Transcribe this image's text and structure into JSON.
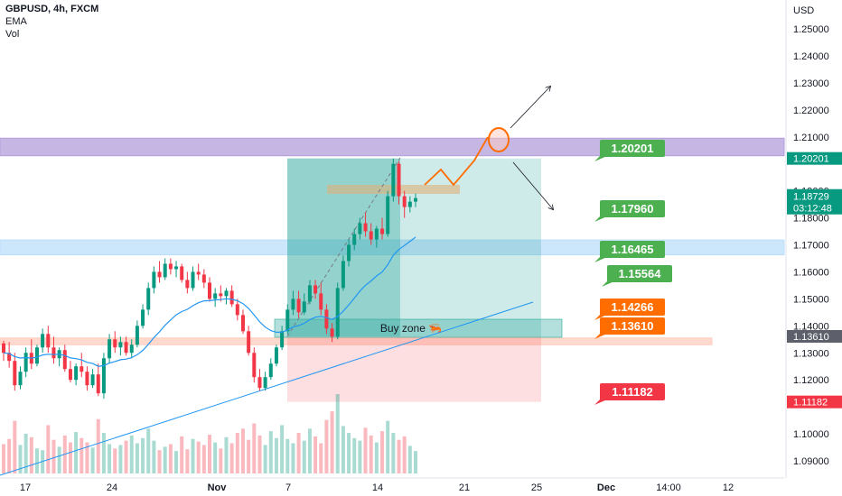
{
  "header": {
    "symbol": "GBPUSD, 4h, FXCM",
    "indicator_1": "EMA",
    "indicator_2": "Vol"
  },
  "chart_data": {
    "type": "candlestick",
    "currency": "USD",
    "ylim": [
      1.085,
      1.265
    ],
    "y_ticks": [
      "1.25000",
      "1.24000",
      "1.23000",
      "1.22000",
      "1.21000",
      "1.19000",
      "1.18000",
      "1.17000",
      "1.16000",
      "1.15000",
      "1.14000",
      "1.13000",
      "1.12000",
      "1.10000",
      "1.09000"
    ],
    "x_ticks": [
      "17",
      "24",
      "Nov",
      "7",
      "14",
      "21",
      "25",
      "Dec",
      "14:00",
      "12"
    ],
    "last_price": {
      "value": "1.18729",
      "countdown": "03:12:48",
      "color": "#089981"
    },
    "axis_price_tags": [
      {
        "value": "1.20201",
        "color": "#089981"
      },
      {
        "value": "1.13610",
        "color": "#5d606b"
      },
      {
        "value": "1.11182",
        "color": "#f23645"
      }
    ],
    "callouts": [
      {
        "label": "1.20201",
        "color": "#4caf50"
      },
      {
        "label": "1.17960",
        "color": "#4caf50"
      },
      {
        "label": "1.16465",
        "color": "#4caf50"
      },
      {
        "label": "1.15564",
        "color": "#4caf50"
      },
      {
        "label": "1.14266",
        "color": "#ff6d00"
      },
      {
        "label": "1.13610",
        "color": "#ff6d00"
      },
      {
        "label": "1.11182",
        "color": "#f23645"
      }
    ],
    "zones": [
      {
        "name": "resistance",
        "from": 1.203,
        "to": 1.2095,
        "color": "#b39ddb"
      },
      {
        "name": "support",
        "from": 1.1663,
        "to": 1.1718,
        "color": "#bbdefb"
      },
      {
        "name": "demand",
        "from": 1.133,
        "to": 1.1355,
        "color": "#ffccbc"
      }
    ],
    "buy_zone_label": "Buy zone 🦐",
    "position": {
      "entry": 1.1361,
      "target": 1.20201,
      "stop": 1.11182
    },
    "ema_color": "#2196f3",
    "up_color": "#089981",
    "down_color": "#f23645",
    "candles": [
      [
        1.1335,
        1.1345,
        1.127,
        1.13
      ],
      [
        1.13,
        1.134,
        1.1245,
        1.127
      ],
      [
        1.127,
        1.13,
        1.116,
        1.118
      ],
      [
        1.118,
        1.125,
        1.1165,
        1.123
      ],
      [
        1.123,
        1.132,
        1.121,
        1.13
      ],
      [
        1.13,
        1.135,
        1.124,
        1.126
      ],
      [
        1.126,
        1.133,
        1.125,
        1.132
      ],
      [
        1.132,
        1.139,
        1.13,
        1.137
      ],
      [
        1.137,
        1.14,
        1.13,
        1.132
      ],
      [
        1.132,
        1.136,
        1.126,
        1.128
      ],
      [
        1.128,
        1.132,
        1.125,
        1.131
      ],
      [
        1.131,
        1.133,
        1.123,
        1.124
      ],
      [
        1.124,
        1.127,
        1.119,
        1.12
      ],
      [
        1.12,
        1.126,
        1.118,
        1.125
      ],
      [
        1.125,
        1.13,
        1.121,
        1.123
      ],
      [
        1.123,
        1.125,
        1.116,
        1.118
      ],
      [
        1.118,
        1.124,
        1.117,
        1.122
      ],
      [
        1.122,
        1.126,
        1.114,
        1.115
      ],
      [
        1.115,
        1.13,
        1.113,
        1.128
      ],
      [
        1.128,
        1.137,
        1.126,
        1.135
      ],
      [
        1.135,
        1.138,
        1.13,
        1.132
      ],
      [
        1.132,
        1.136,
        1.129,
        1.134
      ],
      [
        1.134,
        1.136,
        1.129,
        1.13
      ],
      [
        1.13,
        1.135,
        1.128,
        1.133
      ],
      [
        1.133,
        1.142,
        1.132,
        1.14
      ],
      [
        1.14,
        1.148,
        1.139,
        1.146
      ],
      [
        1.146,
        1.156,
        1.144,
        1.154
      ],
      [
        1.154,
        1.162,
        1.152,
        1.16
      ],
      [
        1.16,
        1.164,
        1.156,
        1.158
      ],
      [
        1.158,
        1.165,
        1.157,
        1.163
      ],
      [
        1.163,
        1.165,
        1.159,
        1.161
      ],
      [
        1.161,
        1.164,
        1.158,
        1.162
      ],
      [
        1.162,
        1.163,
        1.156,
        1.157
      ],
      [
        1.157,
        1.16,
        1.152,
        1.154
      ],
      [
        1.154,
        1.162,
        1.153,
        1.16
      ],
      [
        1.16,
        1.163,
        1.157,
        1.159
      ],
      [
        1.159,
        1.161,
        1.154,
        1.156
      ],
      [
        1.156,
        1.158,
        1.149,
        1.15
      ],
      [
        1.15,
        1.154,
        1.147,
        1.152
      ],
      [
        1.152,
        1.155,
        1.149,
        1.151
      ],
      [
        1.151,
        1.154,
        1.148,
        1.153
      ],
      [
        1.153,
        1.155,
        1.147,
        1.148
      ],
      [
        1.148,
        1.15,
        1.142,
        1.144
      ],
      [
        1.144,
        1.146,
        1.137,
        1.138
      ],
      [
        1.138,
        1.14,
        1.129,
        1.13
      ],
      [
        1.13,
        1.132,
        1.119,
        1.121
      ],
      [
        1.121,
        1.124,
        1.116,
        1.117
      ],
      [
        1.117,
        1.123,
        1.116,
        1.121
      ],
      [
        1.121,
        1.128,
        1.12,
        1.126
      ],
      [
        1.126,
        1.133,
        1.125,
        1.132
      ],
      [
        1.132,
        1.14,
        1.131,
        1.138
      ],
      [
        1.138,
        1.148,
        1.137,
        1.146
      ],
      [
        1.146,
        1.153,
        1.144,
        1.15
      ],
      [
        1.15,
        1.153,
        1.143,
        1.145
      ],
      [
        1.145,
        1.152,
        1.144,
        1.149
      ],
      [
        1.149,
        1.157,
        1.148,
        1.155
      ],
      [
        1.155,
        1.157,
        1.15,
        1.152
      ],
      [
        1.152,
        1.156,
        1.144,
        1.146
      ],
      [
        1.146,
        1.148,
        1.137,
        1.139
      ],
      [
        1.139,
        1.141,
        1.134,
        1.136
      ],
      [
        1.136,
        1.156,
        1.135,
        1.154
      ],
      [
        1.154,
        1.166,
        1.153,
        1.164
      ],
      [
        1.164,
        1.172,
        1.162,
        1.17
      ],
      [
        1.17,
        1.176,
        1.168,
        1.174
      ],
      [
        1.174,
        1.18,
        1.172,
        1.178
      ],
      [
        1.178,
        1.182,
        1.173,
        1.175
      ],
      [
        1.175,
        1.178,
        1.17,
        1.172
      ],
      [
        1.172,
        1.177,
        1.169,
        1.176
      ],
      [
        1.176,
        1.18,
        1.172,
        1.174
      ],
      [
        1.174,
        1.19,
        1.173,
        1.188
      ],
      [
        1.188,
        1.202,
        1.186,
        1.2
      ],
      [
        1.2,
        1.201,
        1.185,
        1.188
      ],
      [
        1.188,
        1.19,
        1.18,
        1.184
      ],
      [
        1.184,
        1.188,
        1.182,
        1.186
      ],
      [
        1.186,
        1.189,
        1.184,
        1.1873
      ]
    ],
    "volumes": [
      34,
      40,
      61,
      33,
      46,
      42,
      29,
      27,
      56,
      39,
      31,
      44,
      36,
      48,
      41,
      36,
      30,
      63,
      47,
      34,
      29,
      33,
      38,
      44,
      35,
      41,
      52,
      38,
      27,
      31,
      34,
      26,
      43,
      28,
      40,
      37,
      33,
      45,
      36,
      29,
      42,
      35,
      47,
      52,
      39,
      58,
      44,
      33,
      49,
      41,
      56,
      40,
      35,
      47,
      38,
      52,
      43,
      35,
      62,
      72,
      92,
      55,
      47,
      41,
      38,
      53,
      44,
      36,
      49,
      61,
      47,
      39,
      43,
      32,
      26
    ]
  }
}
